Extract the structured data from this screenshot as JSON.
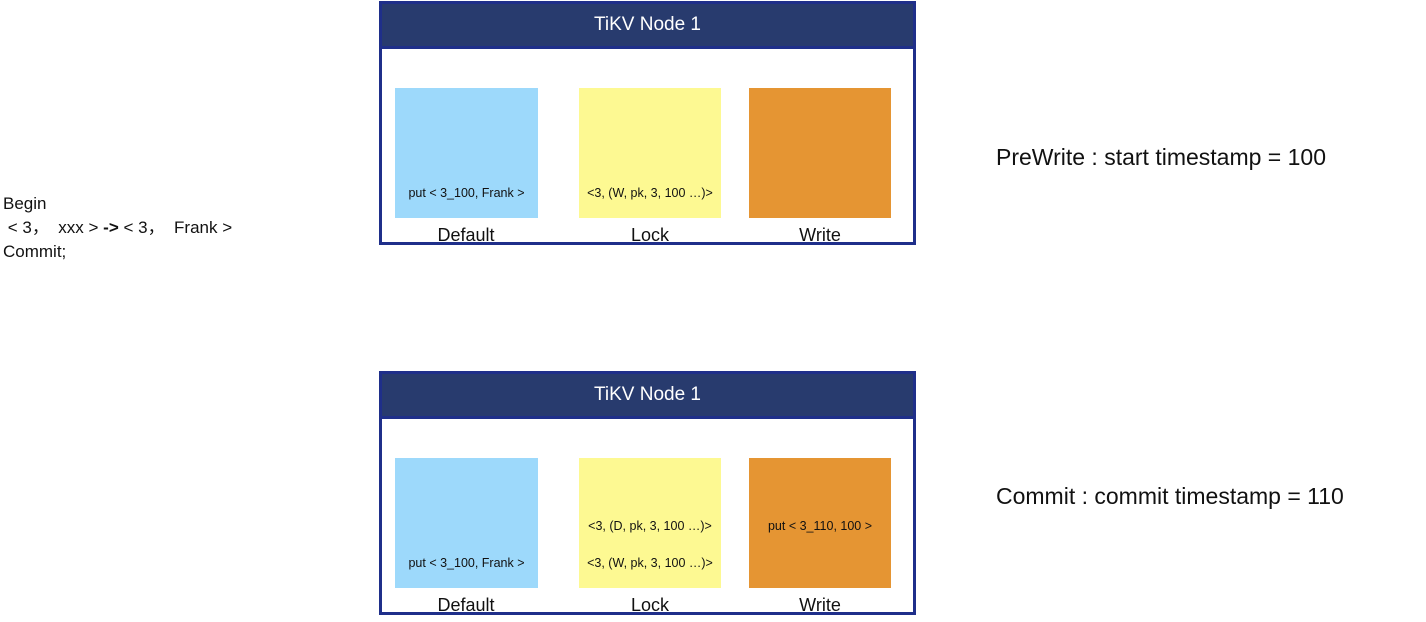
{
  "transaction": {
    "begin": "Begin",
    "old_kv": " < 3，  xxx > ",
    "arrow": "->",
    "new_kv": " < 3，  Frank >",
    "commit": "Commit;"
  },
  "nodes": [
    {
      "title": "TiKV Node 1",
      "phase": "PreWrite : start timestamp = 100",
      "default": {
        "label": "Default",
        "entries": [
          "put < 3_100, Frank >"
        ]
      },
      "lock": {
        "label": "Lock",
        "entries": [
          "<3, (W, pk, 3, 100 …)>"
        ]
      },
      "write": {
        "label": "Write",
        "entries": []
      }
    },
    {
      "title": "TiKV Node 1",
      "phase": "Commit : commit timestamp = 110",
      "default": {
        "label": "Default",
        "entries": [
          "put < 3_100, Frank >"
        ]
      },
      "lock": {
        "label": "Lock",
        "entries": [
          "<3, (D, pk, 3, 100 …)>",
          "<3, (W, pk, 3, 100 …)>"
        ]
      },
      "write": {
        "label": "Write",
        "entries": [
          "put < 3_110, 100 >"
        ]
      }
    }
  ],
  "colors": {
    "header_bg": "#283b6e",
    "border": "#1f2f8a",
    "default_cf": "#9dd9fb",
    "lock_cf": "#fdf992",
    "write_cf": "#e59533"
  }
}
